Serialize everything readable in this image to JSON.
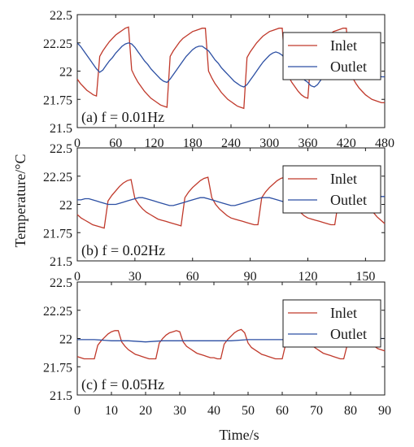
{
  "figure": {
    "ylabel": "Temperature/°C",
    "xlabel": "Time/s"
  },
  "chart_data": [
    {
      "type": "line",
      "panel_label": "(a) f = 0.01Hz",
      "xlim": [
        0,
        480
      ],
      "ylim": [
        21.5,
        22.5
      ],
      "x_ticks": [
        0,
        60,
        120,
        180,
        240,
        300,
        360,
        420,
        480
      ],
      "y_ticks": [
        "21.5",
        "21.75",
        "22",
        "22.25",
        "22.5"
      ],
      "legend_position": "top-right",
      "series": [
        {
          "name": "Inlet",
          "color": "#c0392b",
          "x": [
            0,
            5,
            10,
            15,
            20,
            25,
            30,
            35,
            40,
            45,
            50,
            55,
            60,
            65,
            70,
            75,
            80,
            85,
            90,
            95,
            100,
            105,
            110,
            115,
            120,
            125,
            130,
            135,
            140,
            145,
            150,
            155,
            160,
            165,
            170,
            175,
            180,
            185,
            190,
            195,
            200,
            205,
            210,
            215,
            220,
            225,
            230,
            235,
            240,
            245,
            250,
            255,
            260,
            265,
            270,
            275,
            280,
            285,
            290,
            295,
            300,
            305,
            310,
            315,
            320,
            325,
            330,
            335,
            340,
            345,
            350,
            355,
            360,
            365,
            370,
            375,
            380,
            385,
            390,
            395,
            400,
            405,
            410,
            415,
            420,
            425,
            430,
            435,
            440,
            445,
            450,
            455,
            460,
            465,
            470,
            475,
            480
          ],
          "y": [
            21.93,
            21.89,
            21.86,
            21.83,
            21.81,
            21.79,
            21.78,
            22.13,
            22.18,
            22.22,
            22.26,
            22.29,
            22.32,
            22.34,
            22.36,
            22.38,
            22.39,
            22.01,
            21.95,
            21.9,
            21.86,
            21.82,
            21.79,
            21.76,
            21.74,
            21.72,
            21.7,
            21.69,
            21.68,
            22.13,
            22.18,
            22.22,
            22.26,
            22.29,
            22.31,
            22.33,
            22.35,
            22.36,
            22.37,
            22.38,
            22.38,
            22.0,
            21.94,
            21.89,
            21.85,
            21.81,
            21.78,
            21.75,
            21.73,
            21.71,
            21.69,
            21.68,
            21.67,
            22.12,
            22.17,
            22.21,
            22.25,
            22.28,
            22.31,
            22.33,
            22.35,
            22.36,
            22.37,
            22.38,
            22.38,
            22.01,
            21.95,
            21.9,
            21.86,
            21.82,
            21.79,
            21.77,
            21.76,
            22.13,
            22.18,
            22.22,
            22.26,
            22.29,
            22.31,
            22.33,
            22.35,
            22.36,
            22.37,
            22.38,
            22.38,
            21.99,
            21.94,
            21.89,
            21.85,
            21.82,
            21.79,
            21.77,
            21.75,
            21.74,
            21.73,
            21.72,
            21.72
          ]
        },
        {
          "name": "Outlet",
          "color": "#2c4fa3",
          "x": [
            0,
            5,
            10,
            15,
            20,
            25,
            30,
            35,
            40,
            45,
            50,
            55,
            60,
            65,
            70,
            75,
            80,
            85,
            90,
            95,
            100,
            105,
            110,
            115,
            120,
            125,
            130,
            135,
            140,
            145,
            150,
            155,
            160,
            165,
            170,
            175,
            180,
            185,
            190,
            195,
            200,
            205,
            210,
            215,
            220,
            225,
            230,
            235,
            240,
            245,
            250,
            255,
            260,
            265,
            270,
            275,
            280,
            285,
            290,
            295,
            300,
            305,
            310,
            315,
            320,
            325,
            330,
            335,
            340,
            345,
            350,
            355,
            360,
            365,
            370,
            375,
            380,
            385,
            390,
            395,
            400,
            405,
            410,
            415,
            420,
            425,
            430,
            435,
            440,
            445,
            450,
            455,
            460,
            465,
            470,
            475,
            480
          ],
          "y": [
            22.25,
            22.22,
            22.18,
            22.14,
            22.1,
            22.06,
            22.02,
            21.99,
            22.01,
            22.05,
            22.09,
            22.12,
            22.16,
            22.19,
            22.22,
            22.24,
            22.25,
            22.24,
            22.21,
            22.17,
            22.13,
            22.09,
            22.06,
            22.02,
            21.99,
            21.96,
            21.93,
            21.91,
            21.9,
            21.93,
            21.97,
            22.01,
            22.05,
            22.09,
            22.13,
            22.16,
            22.19,
            22.21,
            22.22,
            22.22,
            22.2,
            22.18,
            22.14,
            22.1,
            22.07,
            22.03,
            22.0,
            21.97,
            21.94,
            21.91,
            21.89,
            21.87,
            21.86,
            21.88,
            21.92,
            21.96,
            22.0,
            22.04,
            22.08,
            22.11,
            22.14,
            22.16,
            22.17,
            22.16,
            22.14,
            22.11,
            22.07,
            22.04,
            22.01,
            21.98,
            21.95,
            21.92,
            21.9,
            21.87,
            21.86,
            21.88,
            21.92,
            21.96,
            22.0,
            22.03,
            22.07,
            22.1,
            22.13,
            22.15,
            22.16,
            22.14,
            22.11,
            22.08,
            22.05,
            22.03,
            22.01,
            21.99,
            21.98,
            21.97,
            21.96,
            21.95,
            21.95
          ]
        }
      ]
    },
    {
      "type": "line",
      "panel_label": "(b) f = 0.02Hz",
      "xlim": [
        0,
        160
      ],
      "ylim": [
        21.5,
        22.5
      ],
      "x_ticks": [
        0,
        30,
        60,
        90,
        120,
        150
      ],
      "y_ticks": [
        "21.5",
        "21.75",
        "22",
        "22.25",
        "22.5"
      ],
      "legend_position": "top-right",
      "series": [
        {
          "name": "Inlet",
          "color": "#c0392b",
          "x": [
            0,
            2,
            4,
            6,
            8,
            10,
            12,
            14,
            16,
            18,
            20,
            22,
            24,
            26,
            28,
            30,
            32,
            34,
            36,
            38,
            40,
            42,
            44,
            46,
            48,
            50,
            52,
            54,
            56,
            58,
            60,
            62,
            64,
            66,
            68,
            70,
            72,
            74,
            76,
            78,
            80,
            82,
            84,
            86,
            88,
            90,
            92,
            94,
            96,
            98,
            100,
            102,
            104,
            106,
            108,
            110,
            112,
            114,
            116,
            118,
            120,
            122,
            124,
            126,
            128,
            130,
            132,
            134,
            136,
            138,
            140,
            142,
            144,
            146,
            148,
            150,
            152,
            154,
            156,
            158,
            160
          ],
          "y": [
            21.91,
            21.88,
            21.86,
            21.84,
            21.82,
            21.81,
            21.8,
            21.79,
            22.03,
            22.08,
            22.12,
            22.16,
            22.19,
            22.21,
            22.22,
            22.05,
            22.0,
            21.96,
            21.93,
            21.91,
            21.89,
            21.87,
            21.86,
            21.85,
            21.84,
            21.83,
            21.82,
            21.81,
            22.06,
            22.11,
            22.15,
            22.18,
            22.21,
            22.23,
            22.24,
            22.06,
            22.0,
            21.96,
            21.93,
            21.9,
            21.88,
            21.87,
            21.86,
            21.85,
            21.84,
            21.83,
            21.82,
            21.82,
            22.06,
            22.11,
            22.15,
            22.18,
            22.21,
            22.23,
            22.24,
            22.06,
            22.0,
            21.96,
            21.93,
            21.9,
            21.88,
            21.87,
            21.86,
            21.85,
            21.84,
            21.83,
            21.82,
            21.82,
            22.04,
            22.09,
            22.13,
            22.16,
            22.19,
            22.21,
            22.22,
            22.04,
            21.98,
            21.93,
            21.89,
            21.86,
            21.83
          ]
        },
        {
          "name": "Outlet",
          "color": "#2c4fa3",
          "x": [
            0,
            2,
            4,
            6,
            8,
            10,
            12,
            14,
            16,
            18,
            20,
            22,
            24,
            26,
            28,
            30,
            32,
            34,
            36,
            38,
            40,
            42,
            44,
            46,
            48,
            50,
            52,
            54,
            56,
            58,
            60,
            62,
            64,
            66,
            68,
            70,
            72,
            74,
            76,
            78,
            80,
            82,
            84,
            86,
            88,
            90,
            92,
            94,
            96,
            98,
            100,
            102,
            104,
            106,
            108,
            110,
            112,
            114,
            116,
            118,
            120,
            122,
            124,
            126,
            128,
            130,
            132,
            134,
            136,
            138,
            140,
            142,
            144,
            146,
            148,
            150,
            152,
            154,
            156,
            158,
            160
          ],
          "y": [
            22.04,
            22.04,
            22.05,
            22.05,
            22.04,
            22.03,
            22.02,
            22.01,
            22.0,
            22.0,
            22.0,
            22.01,
            22.02,
            22.03,
            22.04,
            22.05,
            22.06,
            22.06,
            22.05,
            22.04,
            22.03,
            22.02,
            22.01,
            22.0,
            21.99,
            21.99,
            22.0,
            22.01,
            22.02,
            22.03,
            22.04,
            22.05,
            22.06,
            22.06,
            22.05,
            22.04,
            22.03,
            22.02,
            22.01,
            22.0,
            21.99,
            21.99,
            22.0,
            22.01,
            22.02,
            22.03,
            22.04,
            22.05,
            22.06,
            22.06,
            22.06,
            22.05,
            22.04,
            22.03,
            22.02,
            22.01,
            22.0,
            22.0,
            22.0,
            22.01,
            22.02,
            22.03,
            22.04,
            22.05,
            22.06,
            22.06,
            22.07,
            22.07,
            22.06,
            22.05,
            22.05,
            22.05,
            22.06,
            22.07,
            22.07,
            22.07,
            22.06,
            22.06,
            22.06,
            22.07,
            22.07
          ]
        }
      ]
    },
    {
      "type": "line",
      "panel_label": "(c) f = 0.05Hz",
      "xlim": [
        0,
        90
      ],
      "ylim": [
        21.5,
        22.5
      ],
      "x_ticks": [
        0,
        10,
        20,
        30,
        40,
        50,
        60,
        70,
        80,
        90
      ],
      "y_ticks": [
        "21.5",
        "21.75",
        "22",
        "22.25",
        "22.5"
      ],
      "legend_position": "top-right",
      "series": [
        {
          "name": "Inlet",
          "color": "#c0392b",
          "x": [
            0,
            1,
            2,
            3,
            4,
            5,
            6,
            7,
            8,
            9,
            10,
            11,
            12,
            13,
            14,
            15,
            16,
            17,
            18,
            19,
            20,
            21,
            22,
            23,
            24,
            25,
            26,
            27,
            28,
            29,
            30,
            31,
            32,
            33,
            34,
            35,
            36,
            37,
            38,
            39,
            40,
            41,
            42,
            43,
            44,
            45,
            46,
            47,
            48,
            49,
            50,
            51,
            52,
            53,
            54,
            55,
            56,
            57,
            58,
            59,
            60,
            61,
            62,
            63,
            64,
            65,
            66,
            67,
            68,
            69,
            70,
            71,
            72,
            73,
            74,
            75,
            76,
            77,
            78,
            79,
            80,
            81,
            82,
            83,
            84,
            85,
            86,
            87,
            88,
            89,
            90
          ],
          "y": [
            21.84,
            21.83,
            21.82,
            21.82,
            21.82,
            21.82,
            21.94,
            21.98,
            22.01,
            22.04,
            22.06,
            22.07,
            22.07,
            21.97,
            21.93,
            21.9,
            21.88,
            21.86,
            21.85,
            21.84,
            21.83,
            21.82,
            21.82,
            21.82,
            21.96,
            22.0,
            22.03,
            22.05,
            22.06,
            22.07,
            22.06,
            21.97,
            21.93,
            21.91,
            21.89,
            21.87,
            21.86,
            21.85,
            21.84,
            21.83,
            21.83,
            21.82,
            21.82,
            21.95,
            21.99,
            22.02,
            22.05,
            22.07,
            22.08,
            22.05,
            21.96,
            21.92,
            21.9,
            21.88,
            21.86,
            21.85,
            21.84,
            21.83,
            21.82,
            21.82,
            21.82,
            21.95,
            21.98,
            22.01,
            22.03,
            22.04,
            22.05,
            22.04,
            21.97,
            21.93,
            21.91,
            21.89,
            21.87,
            21.86,
            21.85,
            21.84,
            21.83,
            21.82,
            21.82,
            21.94,
            21.98,
            22.01,
            22.04,
            22.06,
            22.07,
            22.06,
            21.97,
            21.93,
            21.91,
            21.9,
            21.89
          ]
        },
        {
          "name": "Outlet",
          "color": "#2c4fa3",
          "x": [
            0,
            5,
            10,
            15,
            20,
            25,
            30,
            35,
            40,
            45,
            50,
            55,
            60,
            65,
            70,
            75,
            80,
            85,
            90
          ],
          "y": [
            21.99,
            21.99,
            21.98,
            21.98,
            21.97,
            21.98,
            21.98,
            21.98,
            21.98,
            21.98,
            21.99,
            21.99,
            21.99,
            21.99,
            21.99,
            22.0,
            22.0,
            22.0,
            22.0
          ]
        }
      ]
    }
  ]
}
